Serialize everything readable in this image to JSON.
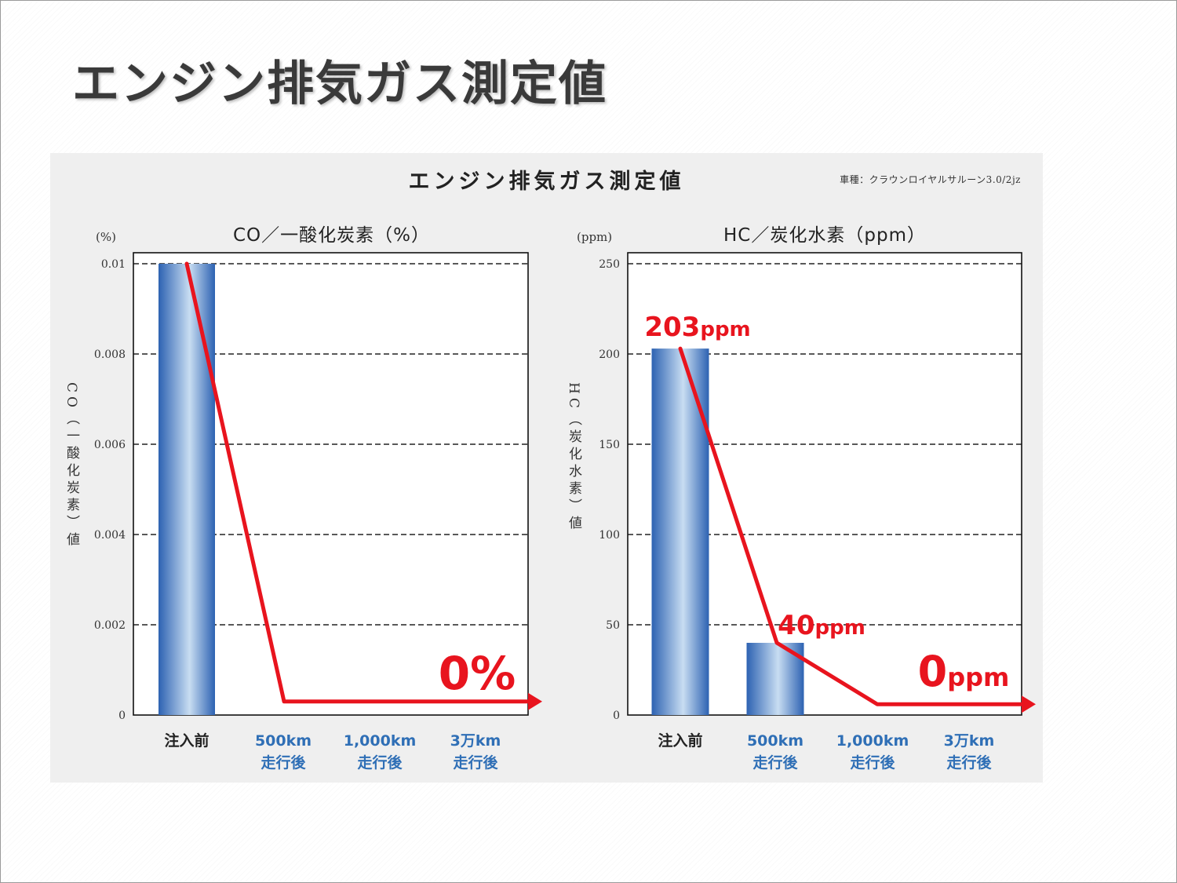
{
  "slide_title": "エンジン排気ガス測定値",
  "figure": {
    "title": "エンジン排気ガス測定値",
    "model_note": "車種：クラウンロイヤルサルーン3.0/2jz"
  },
  "colors": {
    "bar_dark": "#2d62b2",
    "bar_light": "#c8ddf2",
    "line": "#e8141e",
    "category_blue": "#2f6fb6"
  },
  "chart_data": [
    {
      "type": "bar",
      "title": "CO／一酸化炭素（%）",
      "unit": "(%)",
      "ylabel": "CO（一酸化炭素）値",
      "ylim": [
        0,
        0.01
      ],
      "yticks": [
        "0",
        "0.002",
        "0.004",
        "0.006",
        "0.008",
        "0.01"
      ],
      "grid": true,
      "categories": [
        {
          "line1": "注入前",
          "line2": ""
        },
        {
          "line1": "500km",
          "line2": "走行後"
        },
        {
          "line1": "1,000km",
          "line2": "走行後"
        },
        {
          "line1": "3万km",
          "line2": "走行後"
        }
      ],
      "values": [
        0.01,
        0,
        0,
        0
      ],
      "trend_line": [
        0.01,
        0.0003,
        0.0003,
        0.0003
      ],
      "data_labels": [
        {
          "value": "0",
          "unit": "%"
        }
      ]
    },
    {
      "type": "bar",
      "title": "HC／炭化水素（ppm）",
      "unit": "(ppm)",
      "ylabel": "HC（炭化水素）値",
      "ylim": [
        0,
        250
      ],
      "yticks": [
        "0",
        "50",
        "100",
        "150",
        "200",
        "250"
      ],
      "grid": true,
      "categories": [
        {
          "line1": "注入前",
          "line2": ""
        },
        {
          "line1": "500km",
          "line2": "走行後"
        },
        {
          "line1": "1,000km",
          "line2": "走行後"
        },
        {
          "line1": "3万km",
          "line2": "走行後"
        }
      ],
      "values": [
        203,
        40,
        0,
        0
      ],
      "trend_line": [
        203,
        40,
        6,
        6
      ],
      "data_labels": [
        {
          "value": "203",
          "unit": "ppm"
        },
        {
          "value": "40",
          "unit": "ppm"
        },
        {
          "value": "0",
          "unit": "ppm"
        }
      ]
    }
  ]
}
